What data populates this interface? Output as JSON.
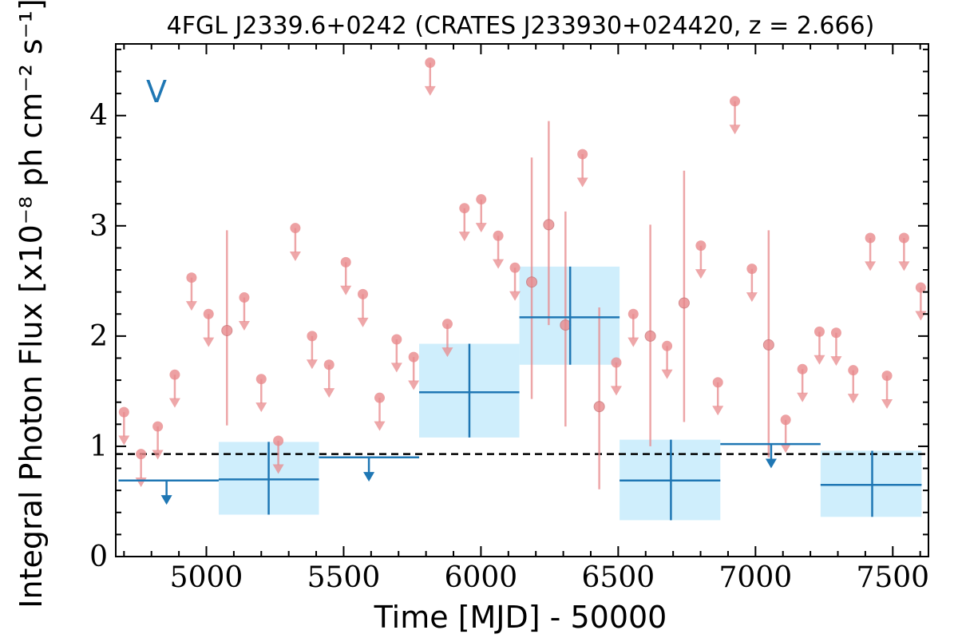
{
  "chart_data": {
    "type": "scatter",
    "title": "4FGL J2339.6+0242 (CRATES J233930+024420, z = 2.666)",
    "xlabel": "Time [MJD] - 50000",
    "ylabel": "Integral Photon Flux [x10⁻⁸ ph cm⁻² s⁻¹]",
    "variability_flag": "V",
    "xlim": [
      4670,
      7630
    ],
    "ylim": [
      0,
      4.65
    ],
    "x_ticks": [
      5000,
      5500,
      6000,
      6500,
      7000,
      7500
    ],
    "x_tick_labels": [
      "5000",
      "5500",
      "6000",
      "6500",
      "7000",
      "7500"
    ],
    "y_ticks": [
      0,
      1,
      2,
      3,
      4
    ],
    "y_tick_labels": [
      "0",
      "1",
      "2",
      "3",
      "4"
    ],
    "mean_flux": 0.93,
    "colors": {
      "short_bins": "#e8898c",
      "long_bins": "#1f77b4",
      "long_bins_band": "#cfeefc",
      "mean_line": "#000000"
    },
    "series": [
      {
        "bin": "short",
        "points": [
          {
            "x": 4700,
            "y": 1.31,
            "ul": true
          },
          {
            "x": 4762,
            "y": 0.93,
            "ul": true
          },
          {
            "x": 4823,
            "y": 1.18,
            "ul": true
          },
          {
            "x": 4885,
            "y": 1.65,
            "ul": true
          },
          {
            "x": 4946,
            "y": 2.53,
            "ul": true
          },
          {
            "x": 5008,
            "y": 2.2,
            "ul": true
          },
          {
            "x": 5075,
            "y": 2.05,
            "ul": false,
            "lo": 1.19,
            "hi": 2.96
          },
          {
            "x": 5138,
            "y": 2.35,
            "ul": true
          },
          {
            "x": 5200,
            "y": 1.61,
            "ul": true
          },
          {
            "x": 5262,
            "y": 1.05,
            "ul": true
          },
          {
            "x": 5324,
            "y": 2.98,
            "ul": true
          },
          {
            "x": 5385,
            "y": 2.0,
            "ul": true
          },
          {
            "x": 5447,
            "y": 1.74,
            "ul": true
          },
          {
            "x": 5508,
            "y": 2.67,
            "ul": true
          },
          {
            "x": 5570,
            "y": 2.38,
            "ul": true
          },
          {
            "x": 5631,
            "y": 1.44,
            "ul": true
          },
          {
            "x": 5693,
            "y": 1.97,
            "ul": true
          },
          {
            "x": 5755,
            "y": 1.81,
            "ul": true
          },
          {
            "x": 5815,
            "y": 4.48,
            "ul": true
          },
          {
            "x": 5878,
            "y": 2.11,
            "ul": true
          },
          {
            "x": 5940,
            "y": 3.16,
            "ul": true
          },
          {
            "x": 6001,
            "y": 3.24,
            "ul": true
          },
          {
            "x": 6063,
            "y": 2.91,
            "ul": true
          },
          {
            "x": 6124,
            "y": 2.62,
            "ul": true
          },
          {
            "x": 6185,
            "y": 2.49,
            "ul": false,
            "lo": 1.43,
            "hi": 3.62
          },
          {
            "x": 6247,
            "y": 3.01,
            "ul": false,
            "lo": 2.1,
            "hi": 3.95
          },
          {
            "x": 6308,
            "y": 2.1,
            "ul": false,
            "lo": 1.18,
            "hi": 3.13
          },
          {
            "x": 6370,
            "y": 3.65,
            "ul": true
          },
          {
            "x": 6431,
            "y": 1.36,
            "ul": false,
            "lo": 0.61,
            "hi": 2.26
          },
          {
            "x": 6493,
            "y": 1.76,
            "ul": true
          },
          {
            "x": 6555,
            "y": 2.2,
            "ul": true
          },
          {
            "x": 6617,
            "y": 2.0,
            "ul": false,
            "lo": 1.0,
            "hi": 3.01
          },
          {
            "x": 6678,
            "y": 1.91,
            "ul": true
          },
          {
            "x": 6740,
            "y": 2.3,
            "ul": false,
            "lo": 1.22,
            "hi": 3.5
          },
          {
            "x": 6801,
            "y": 2.82,
            "ul": true
          },
          {
            "x": 6863,
            "y": 1.58,
            "ul": true
          },
          {
            "x": 6925,
            "y": 4.13,
            "ul": true
          },
          {
            "x": 6987,
            "y": 2.61,
            "ul": true
          },
          {
            "x": 7048,
            "y": 1.92,
            "ul": false,
            "lo": 0.9,
            "hi": 2.96
          },
          {
            "x": 7110,
            "y": 1.24,
            "ul": true
          },
          {
            "x": 7171,
            "y": 1.7,
            "ul": true
          },
          {
            "x": 7233,
            "y": 2.04,
            "ul": true
          },
          {
            "x": 7294,
            "y": 2.03,
            "ul": true
          },
          {
            "x": 7356,
            "y": 1.69,
            "ul": true
          },
          {
            "x": 7418,
            "y": 2.89,
            "ul": true
          },
          {
            "x": 7479,
            "y": 1.64,
            "ul": true
          },
          {
            "x": 7541,
            "y": 2.89,
            "ul": true
          },
          {
            "x": 7602,
            "y": 2.44,
            "ul": true
          }
        ]
      },
      {
        "bin": "long",
        "points": [
          {
            "x": 4855,
            "x0": 4680,
            "x1": 5045,
            "y": 0.69,
            "ul": true
          },
          {
            "x": 5227,
            "x0": 5045,
            "x1": 5410,
            "y": 0.7,
            "ul": false,
            "lo": 0.38,
            "hi": 1.04
          },
          {
            "x": 5592,
            "x0": 5410,
            "x1": 5775,
            "y": 0.9,
            "ul": true
          },
          {
            "x": 5958,
            "x0": 5775,
            "x1": 6140,
            "y": 1.49,
            "ul": false,
            "lo": 1.08,
            "hi": 1.93
          },
          {
            "x": 6325,
            "x0": 6140,
            "x1": 6505,
            "y": 2.17,
            "ul": false,
            "lo": 1.74,
            "hi": 2.63
          },
          {
            "x": 6692,
            "x0": 6505,
            "x1": 6872,
            "y": 0.69,
            "ul": false,
            "lo": 0.33,
            "hi": 1.06
          },
          {
            "x": 7057,
            "x0": 6872,
            "x1": 7237,
            "y": 1.02,
            "ul": true
          },
          {
            "x": 7425,
            "x0": 7237,
            "x1": 7605,
            "y": 0.65,
            "ul": false,
            "lo": 0.36,
            "hi": 0.96
          }
        ]
      }
    ]
  }
}
